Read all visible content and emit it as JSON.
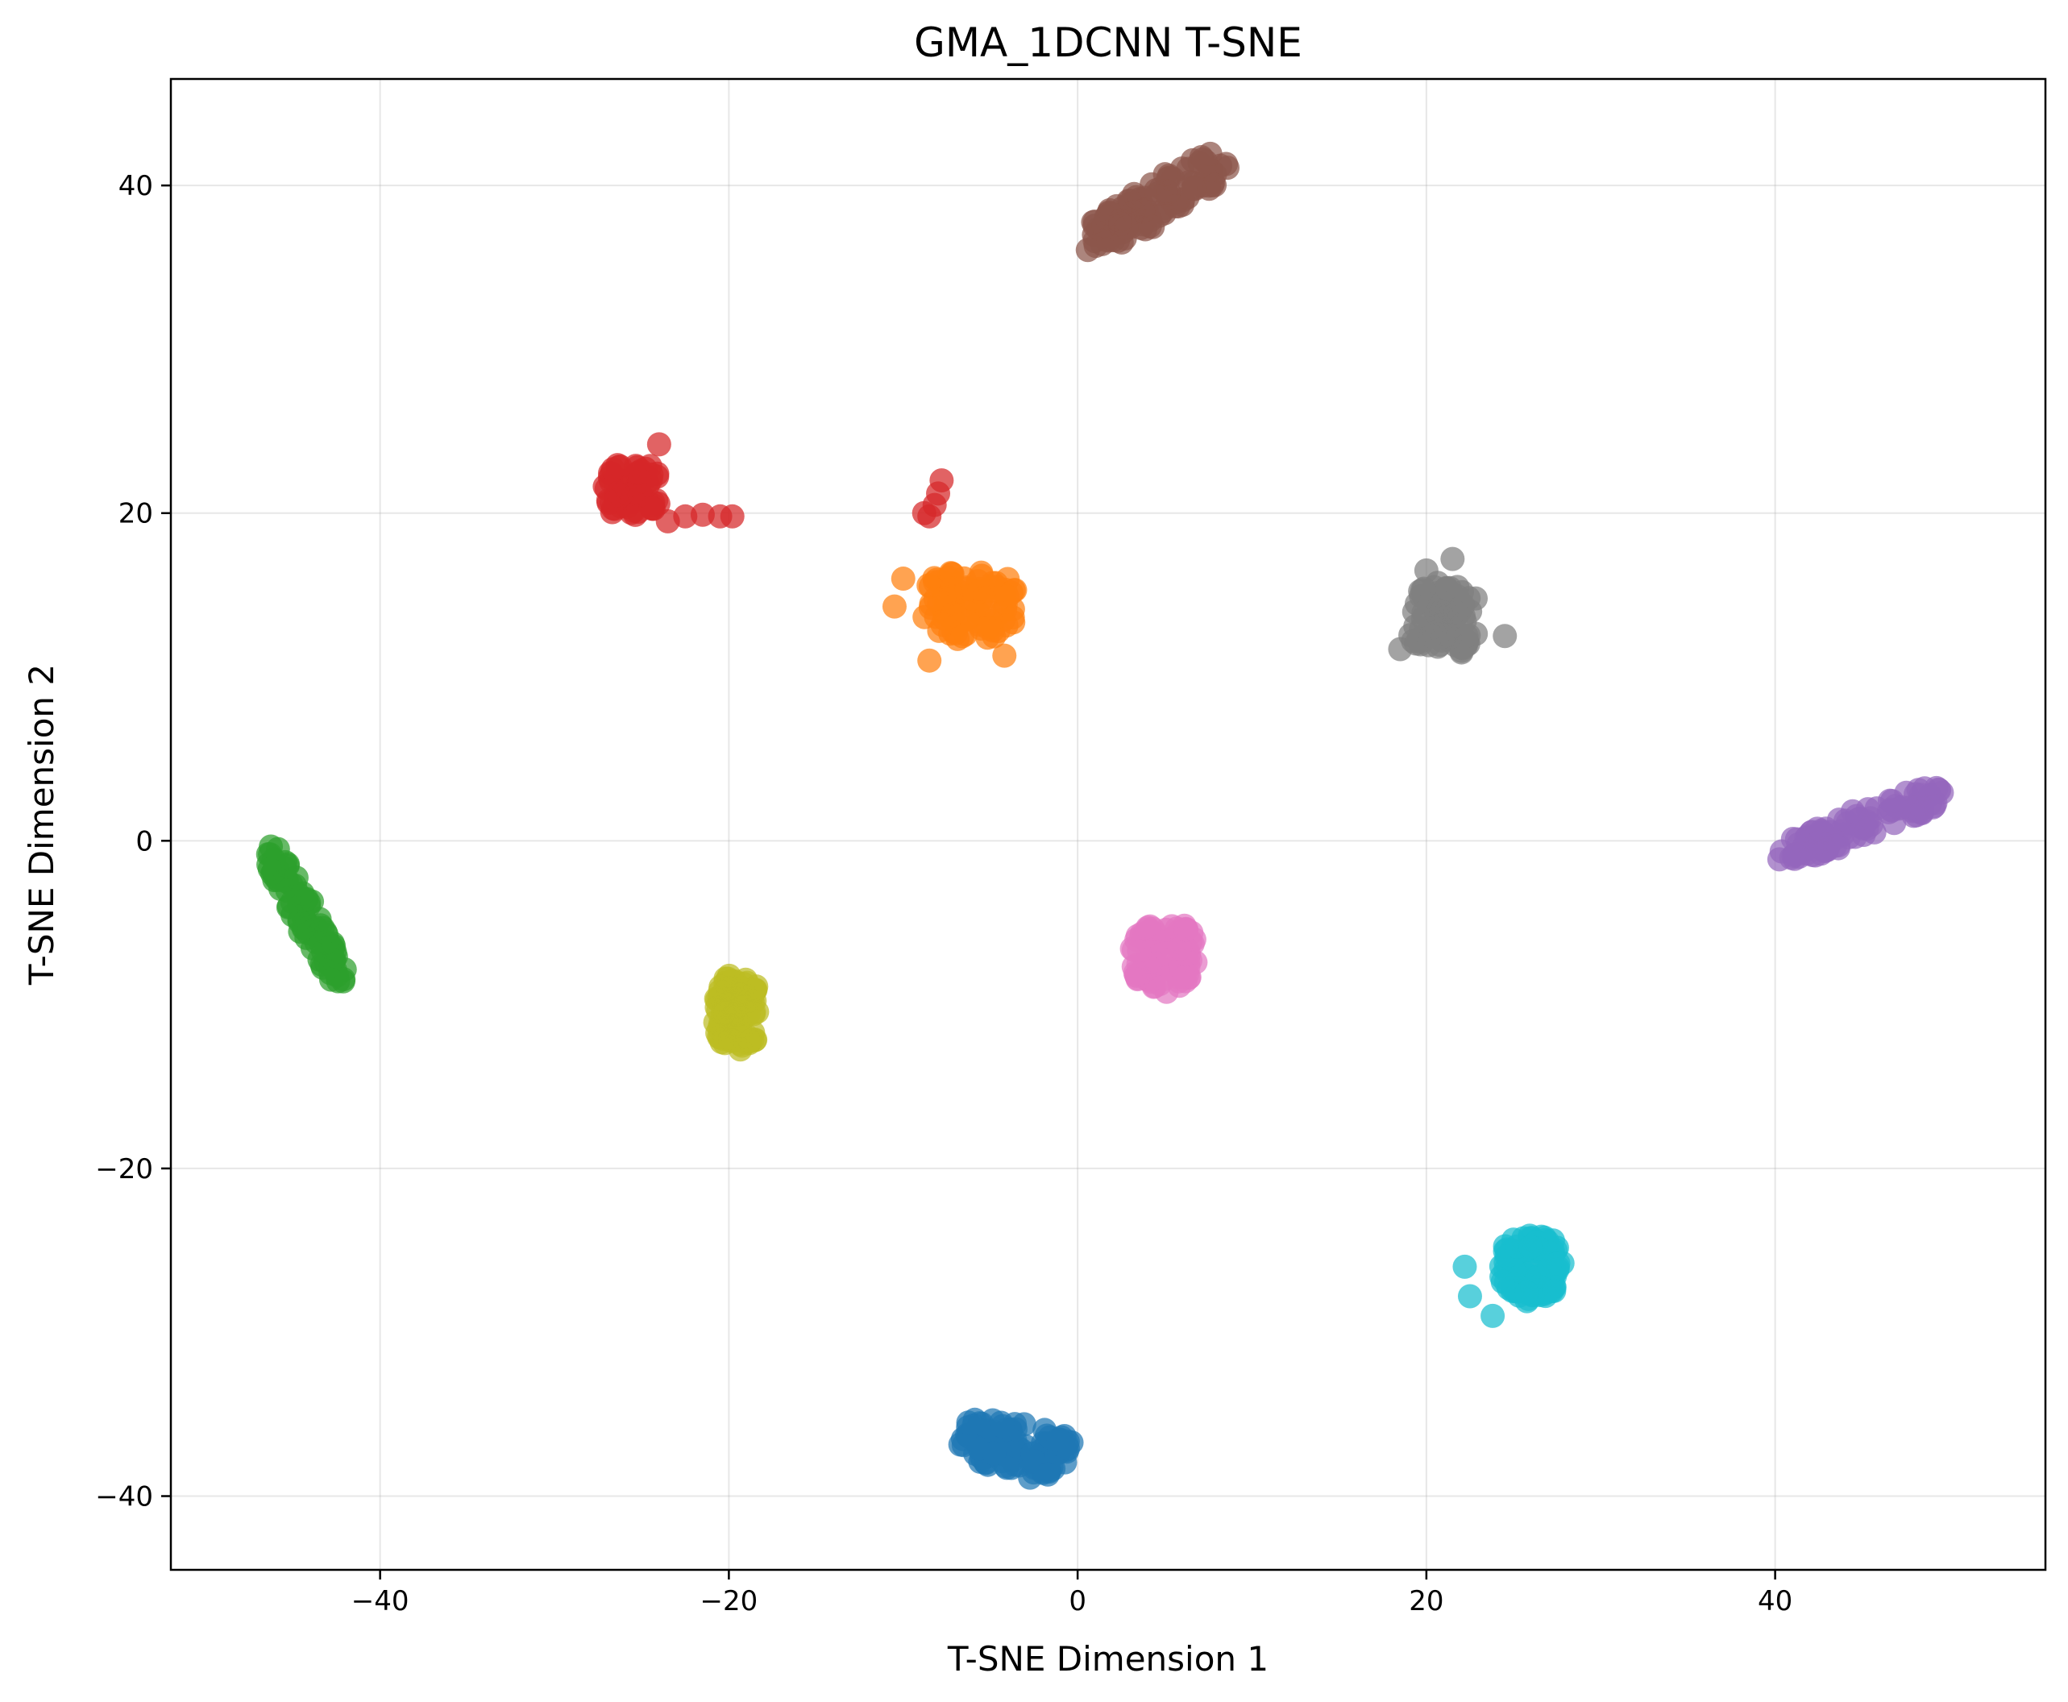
{
  "chart_data": {
    "type": "scatter",
    "title": "GMA_1DCNN T-SNE",
    "xlabel": "T-SNE Dimension 1",
    "ylabel": "T-SNE Dimension 2",
    "xlim": [
      -52,
      55.5
    ],
    "ylim": [
      -44.5,
      46.5
    ],
    "xticks": [
      -40,
      -20,
      0,
      20,
      40
    ],
    "yticks": [
      -40,
      -20,
      0,
      20,
      40
    ],
    "grid": true,
    "legend": "none",
    "clusters": [
      {
        "color": "#1f77b4",
        "center": [
          -3.5,
          -37
        ],
        "spread": [
          3.2,
          1.6
        ],
        "rotation": -10,
        "count": 110,
        "seed": 11
      },
      {
        "color": "#ff7f0e",
        "center": [
          -6,
          14.5
        ],
        "spread": [
          2.6,
          2.2
        ],
        "rotation": 0,
        "count": 100,
        "seed": 12
      },
      {
        "color": "#2ca02c",
        "center": [
          -44.3,
          -4.5
        ],
        "spread": [
          0.7,
          4.6
        ],
        "rotation": 27,
        "count": 90,
        "seed": 13
      },
      {
        "color": "#d62728",
        "center": [
          -25.5,
          21.5
        ],
        "spread": [
          1.6,
          1.8
        ],
        "rotation": 0,
        "count": 70,
        "seed": 14
      },
      {
        "color": "#9467bd",
        "center": [
          45,
          1
        ],
        "spread": [
          5,
          0.9
        ],
        "rotation": 23,
        "count": 100,
        "seed": 15
      },
      {
        "color": "#8c564b",
        "center": [
          4.5,
          39
        ],
        "spread": [
          4.6,
          1.2
        ],
        "rotation": 32,
        "count": 110,
        "seed": 16
      },
      {
        "color": "#e377c2",
        "center": [
          5,
          -7
        ],
        "spread": [
          1.8,
          2.0
        ],
        "rotation": 0,
        "count": 100,
        "seed": 17
      },
      {
        "color": "#7f7f7f",
        "center": [
          21,
          13.5
        ],
        "spread": [
          2.0,
          2.1
        ],
        "rotation": 0,
        "count": 90,
        "seed": 18
      },
      {
        "color": "#bcbd22",
        "center": [
          -19.5,
          -10.5
        ],
        "spread": [
          1.3,
          2.1
        ],
        "rotation": 0,
        "count": 100,
        "seed": 19
      },
      {
        "color": "#17becf",
        "center": [
          26,
          -26
        ],
        "spread": [
          1.7,
          1.9
        ],
        "rotation": 0,
        "count": 100,
        "seed": 20
      }
    ],
    "extra_points": [
      {
        "color": "#d62728",
        "points": [
          [
            -22.5,
            19.8
          ],
          [
            -21.5,
            19.9
          ],
          [
            -20.5,
            19.8
          ],
          [
            -19.8,
            19.8
          ],
          [
            -23.5,
            19.5
          ],
          [
            -24,
            24.2
          ],
          [
            -7.8,
            22
          ],
          [
            -8,
            21.2
          ],
          [
            -8.2,
            20.5
          ],
          [
            -8.8,
            20
          ],
          [
            -8.5,
            19.8
          ]
        ]
      },
      {
        "color": "#ff7f0e",
        "points": [
          [
            -10,
            16
          ],
          [
            -10.5,
            14.3
          ],
          [
            -4.2,
            11.3
          ],
          [
            -8.5,
            11
          ]
        ]
      },
      {
        "color": "#7f7f7f",
        "points": [
          [
            18.5,
            11.7
          ],
          [
            24.5,
            12.5
          ],
          [
            20,
            16.5
          ],
          [
            21.5,
            17.2
          ]
        ]
      },
      {
        "color": "#17becf",
        "points": [
          [
            22.5,
            -27.8
          ],
          [
            23.8,
            -29
          ],
          [
            22.2,
            -26
          ]
        ]
      }
    ]
  }
}
